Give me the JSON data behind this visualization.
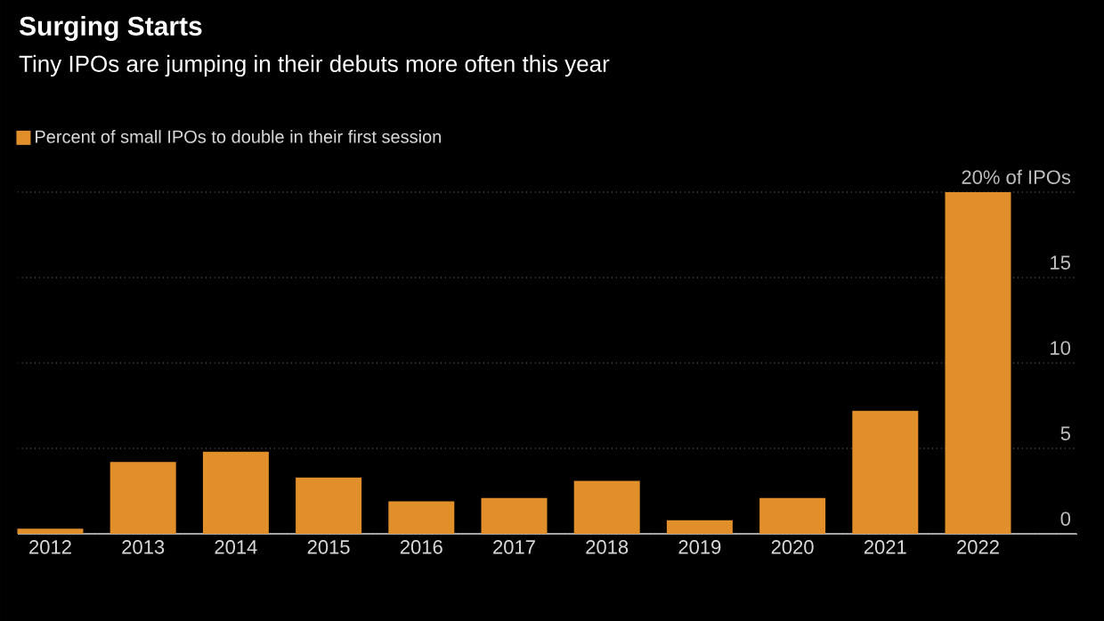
{
  "chart_data": {
    "type": "bar",
    "title": "Surging Starts",
    "subtitle": "Tiny IPOs are jumping in their debuts more often this year",
    "categories": [
      "2012",
      "2013",
      "2014",
      "2015",
      "2016",
      "2017",
      "2018",
      "2019",
      "2020",
      "2021",
      "2022"
    ],
    "series": [
      {
        "name": "Percent of small IPOs to double in their first session",
        "color": "#e08f2b",
        "values": [
          0.3,
          4.2,
          4.8,
          3.3,
          1.9,
          2.1,
          3.1,
          0.8,
          2.1,
          7.2,
          20
        ]
      }
    ],
    "ylim": [
      0,
      20
    ],
    "yticks": [
      0,
      5,
      10,
      15,
      {
        "value": 20,
        "label": "20% of IPOs"
      }
    ],
    "grid": "y",
    "legend": "top left"
  }
}
